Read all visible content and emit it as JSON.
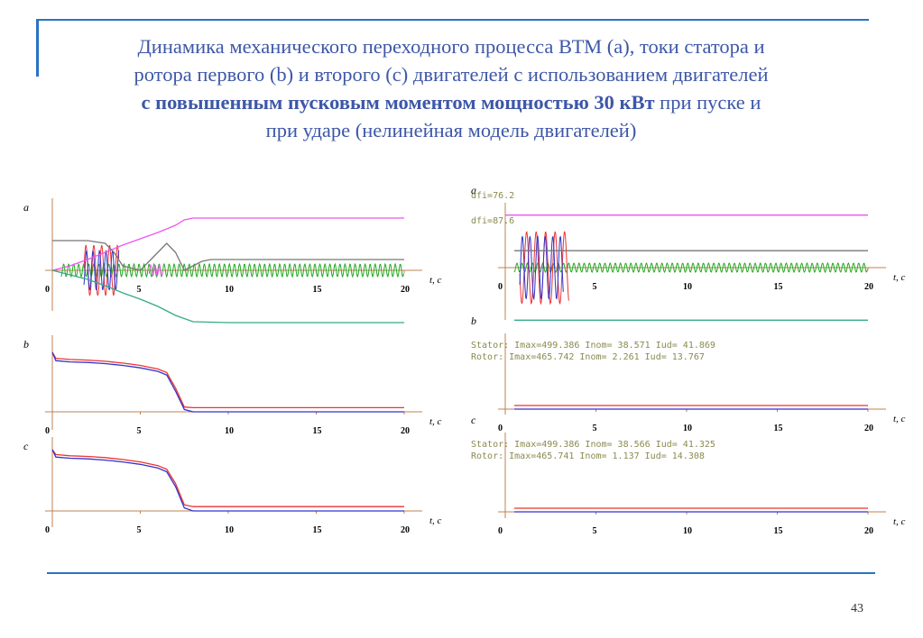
{
  "title": {
    "line1": "Динамика механического переходного процесса ВТМ (а), токи статора и",
    "line2": "ротора первого (b) и второго (с) двигателей с использованием двигателей",
    "line3_bold": "с повышенным пусковым моментом мощностью 30 кВт",
    "line3_rest": " при пуске и",
    "line4": "при ударе (нелинейная модель двигателей)"
  },
  "page_number": "43",
  "colors": {
    "accent": "#2a72c4",
    "title_text": "#3d57a8",
    "magenta": "#ee55ee",
    "gray": "#777777",
    "teal": "#33aa88",
    "red": "#ee3333",
    "blue": "#3333cc",
    "green": "#22aa22",
    "olive_text": "#8a8a50"
  },
  "left_panel": {
    "plots": [
      {
        "letter": "a",
        "xlabel": "t, c",
        "ticks": [
          "0",
          "5",
          "10",
          "15",
          "20"
        ]
      },
      {
        "letter": "b",
        "xlabel": "t, c",
        "ticks": [
          "0",
          "5",
          "10",
          "15",
          "20"
        ]
      },
      {
        "letter": "c",
        "xlabel": "t, c",
        "ticks": [
          "0",
          "5",
          "10",
          "15",
          "20"
        ]
      }
    ]
  },
  "right_panel": {
    "plots": [
      {
        "letter": "a",
        "xlabel": "t, c",
        "ticks": [
          "0",
          "5",
          "10",
          "15",
          "20"
        ],
        "annotations": [
          "dfi=76.2",
          "dfi=87.6"
        ]
      },
      {
        "letter": "b",
        "xlabel": "t, c",
        "ticks": [
          "0",
          "5",
          "10",
          "15",
          "20"
        ],
        "annotations": [
          "Stator: Imax=499.386 Inom= 38.571 Iud= 41.869",
          "Rotor: Imax=465.742 Inom=  2.261 Iud= 13.767"
        ]
      },
      {
        "letter": "c",
        "xlabel": "t, c",
        "ticks": [
          "0",
          "5",
          "10",
          "15",
          "20"
        ],
        "annotations": [
          "Stator: Imax=499.386 Inom= 38.566 Iud= 41.325",
          "Rotor: Imax=465.741 Inom=  1.137 Iud= 14.308"
        ]
      }
    ]
  },
  "chart_data": [
    {
      "type": "line",
      "panel": "left-a",
      "xlim": [
        0,
        20
      ],
      "series": [
        {
          "color": "#ee55ee",
          "x": [
            0,
            1,
            2,
            3,
            4,
            5,
            6,
            7,
            7.5,
            8,
            10,
            15,
            20
          ],
          "y": [
            0,
            0.05,
            0.12,
            0.2,
            0.28,
            0.35,
            0.42,
            0.5,
            0.56,
            0.58,
            0.58,
            0.58,
            0.58
          ]
        },
        {
          "color": "#777777",
          "x": [
            0,
            1,
            2,
            3,
            3.5,
            4,
            5,
            6,
            6.5,
            7,
            7.5,
            8,
            8.5,
            9,
            10,
            15,
            20
          ],
          "y": [
            0.33,
            0.33,
            0.33,
            0.3,
            0.2,
            0.05,
            0.0,
            0.2,
            0.3,
            0.2,
            0.0,
            0.05,
            0.1,
            0.12,
            0.12,
            0.12,
            0.12
          ]
        },
        {
          "color": "#33aa88",
          "x": [
            0,
            1,
            2,
            3,
            4,
            5,
            6,
            7,
            8,
            10,
            15,
            20
          ],
          "y": [
            0,
            -0.05,
            -0.1,
            -0.17,
            -0.25,
            -0.32,
            -0.4,
            -0.5,
            -0.57,
            -0.58,
            -0.58,
            -0.58
          ]
        }
      ]
    },
    {
      "type": "line",
      "panel": "left-b",
      "xlim": [
        0,
        20
      ],
      "series": [
        {
          "color": "#ee3333",
          "x": [
            0,
            0.2,
            1,
            2,
            3,
            4,
            5,
            6,
            6.5,
            7,
            7.5,
            8,
            10,
            20
          ],
          "y": [
            1,
            0.9,
            0.88,
            0.87,
            0.85,
            0.82,
            0.78,
            0.72,
            0.66,
            0.4,
            0.08,
            0.07,
            0.07,
            0.07
          ]
        },
        {
          "color": "#3333cc",
          "x": [
            0,
            0.2,
            1,
            2,
            3,
            4,
            5,
            6,
            6.5,
            7,
            7.5,
            8,
            10,
            20
          ],
          "y": [
            1,
            0.86,
            0.84,
            0.83,
            0.81,
            0.78,
            0.74,
            0.68,
            0.62,
            0.35,
            0.04,
            0.0,
            0.0,
            0.0
          ]
        }
      ]
    },
    {
      "type": "line",
      "panel": "left-c",
      "xlim": [
        0,
        20
      ],
      "series": [
        {
          "color": "#ee3333",
          "x": [
            0,
            0.2,
            1,
            2,
            3,
            4,
            5,
            6,
            6.5,
            7,
            7.5,
            8,
            10,
            20
          ],
          "y": [
            1,
            0.92,
            0.9,
            0.89,
            0.87,
            0.84,
            0.8,
            0.74,
            0.68,
            0.45,
            0.1,
            0.07,
            0.07,
            0.07
          ]
        },
        {
          "color": "#3333cc",
          "x": [
            0,
            0.2,
            1,
            2,
            3,
            4,
            5,
            6,
            6.5,
            7,
            7.5,
            8,
            10,
            20
          ],
          "y": [
            1,
            0.88,
            0.86,
            0.85,
            0.83,
            0.8,
            0.76,
            0.7,
            0.64,
            0.4,
            0.05,
            0.0,
            0.0,
            0.0
          ]
        }
      ]
    },
    {
      "type": "line",
      "panel": "right-a",
      "xlim": [
        0,
        20
      ],
      "series": [
        {
          "color": "#ee55ee",
          "x": [
            0,
            1.5,
            20
          ],
          "y": [
            0.62,
            0.62,
            0.62
          ]
        },
        {
          "color": "#777777",
          "x": [
            0.5,
            20
          ],
          "y": [
            0.2,
            0.2
          ]
        },
        {
          "color": "#33aa88",
          "x": [
            0.5,
            20
          ],
          "y": [
            -0.62,
            -0.62
          ]
        }
      ]
    },
    {
      "type": "line",
      "panel": "right-b",
      "xlim": [
        0,
        20
      ],
      "series": [
        {
          "color": "#ee3333",
          "x": [
            0.5,
            20
          ],
          "y": [
            0.04,
            0.04
          ]
        },
        {
          "color": "#3333cc",
          "x": [
            0.5,
            20
          ],
          "y": [
            0.0,
            0.0
          ]
        }
      ]
    },
    {
      "type": "line",
      "panel": "right-c",
      "xlim": [
        0,
        20
      ],
      "series": [
        {
          "color": "#ee3333",
          "x": [
            0.5,
            20
          ],
          "y": [
            0.04,
            0.04
          ]
        },
        {
          "color": "#3333cc",
          "x": [
            0.5,
            20
          ],
          "y": [
            0.0,
            0.0
          ]
        }
      ]
    }
  ]
}
